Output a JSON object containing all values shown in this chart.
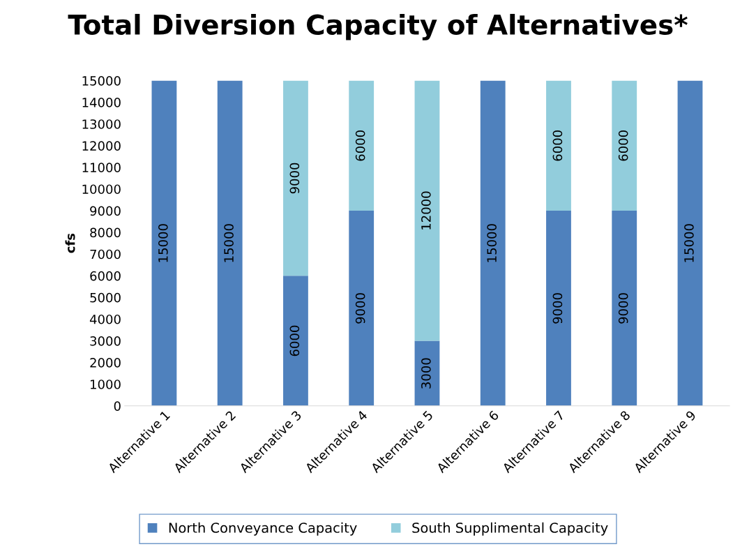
{
  "chart_data": {
    "type": "bar",
    "title": "Total Diversion Capacity of Alternatives*",
    "ylabel": "cfs",
    "categories": [
      "Alternative 1",
      "Alternative 2",
      "Alternative 3",
      "Alternative 4",
      "Alternative 5",
      "Alternative 6",
      "Alternative 7",
      "Alternative 8",
      "Alternative 9"
    ],
    "stacked": true,
    "series": [
      {
        "name": "North Conveyance Capacity",
        "color": "#4f81bd",
        "values": [
          15000,
          15000,
          6000,
          9000,
          3000,
          15000,
          9000,
          9000,
          15000
        ]
      },
      {
        "name": "South Supplimental Capacity",
        "color": "#92cddc",
        "values": [
          null,
          null,
          9000,
          6000,
          12000,
          null,
          6000,
          6000,
          null
        ]
      }
    ],
    "ylim": [
      0,
      15000
    ],
    "yticks": [
      0,
      1000,
      2000,
      3000,
      4000,
      5000,
      6000,
      7000,
      8000,
      9000,
      10000,
      11000,
      12000,
      13000,
      14000,
      15000
    ],
    "data_labels": true,
    "grid": false,
    "legend": "bottom"
  }
}
